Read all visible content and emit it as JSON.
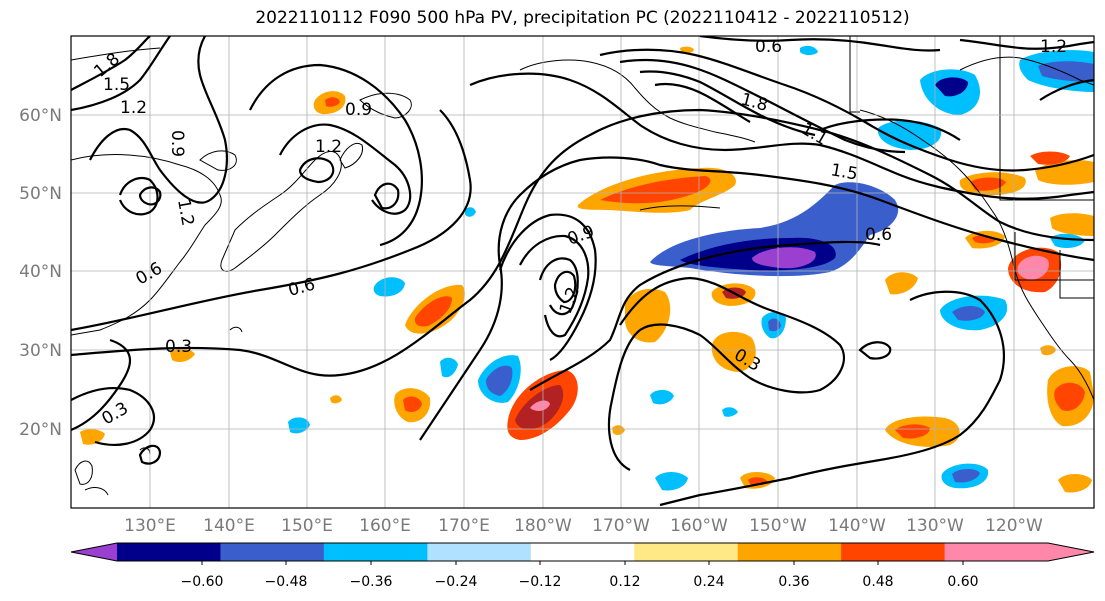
{
  "title": "2022110112 F090 500 hPa PV, precipitation PC (2022110412 - 2022110512)",
  "latitude_labels": [
    "60°N",
    "50°N",
    "40°N",
    "30°N",
    "20°N"
  ],
  "longitude_labels": [
    "130°E",
    "140°E",
    "150°E",
    "160°E",
    "170°E",
    "180°W",
    "170°W",
    "160°W",
    "150°W",
    "140°W",
    "130°W",
    "120°W"
  ],
  "colorbar": {
    "ticks": [
      "−0.60",
      "−0.48",
      "−0.36",
      "−0.24",
      "−0.12",
      "0.12",
      "0.24",
      "0.36",
      "0.48",
      "0.60"
    ],
    "colors": [
      "#9b3fd0",
      "#00008b",
      "#3a5fcd",
      "#00bfff",
      "#b0e2ff",
      "#ffffff",
      "#ffe987",
      "#ffa500",
      "#ff4500",
      "#b22222",
      "#ff88aa"
    ]
  },
  "pv_contour_labels": [
    "1.8",
    "1.5",
    "1.2",
    "0.9",
    "0.9",
    "1.2",
    "1.2",
    "0.6",
    "0.6",
    "0.3",
    "0.3",
    "0.6",
    "1.8",
    "1.5",
    "1.1",
    "0.9",
    "1.2",
    "0.6",
    "0.3",
    "1.2"
  ]
}
